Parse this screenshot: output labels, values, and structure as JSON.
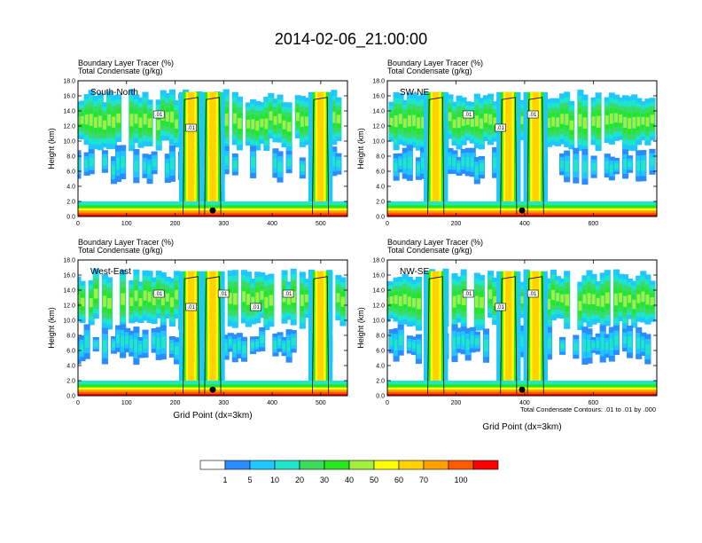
{
  "figure_title": "2014-02-06_21:00:00",
  "panel_line1": "Boundary Layer Tracer   (%)",
  "panel_line2": "Total Condensate   (g/kg)",
  "ylabel": "Height (km)",
  "xlabel": "Grid Point (dx=3km)",
  "contour_info": "Total Condensate Contours: .01 to .01 by .000",
  "colors": {
    "frame": "#000000",
    "contour": "#000000",
    "legend": [
      "#ffffff",
      "#2a8cff",
      "#1ec8ff",
      "#1ee6c8",
      "#3cdc5a",
      "#28e61e",
      "#a0f03c",
      "#ffff00",
      "#ffd200",
      "#ffa000",
      "#ff5a00",
      "#ff0000"
    ]
  },
  "legend": {
    "labels": [
      "1",
      "5",
      "10",
      "20",
      "30",
      "40",
      "50",
      "60",
      "70",
      "100"
    ]
  },
  "chart_data": [
    {
      "type": "heatmap",
      "panel": "South-North",
      "xlabel": "",
      "ylabel": "Height (km)",
      "xlim": [
        0,
        555
      ],
      "ylim": [
        0,
        18
      ],
      "x_ticks": [
        "0",
        "100",
        "200",
        "300",
        "400",
        "500"
      ],
      "y_ticks": [
        "0.0",
        "2.0",
        "4.0",
        "6.0",
        "8.0",
        "10.0",
        "12.0",
        "14.0",
        "16.0",
        "18.0"
      ],
      "contour_labels": [
        ".01",
        ".01"
      ]
    },
    {
      "type": "heatmap",
      "panel": "SW-NE",
      "xlabel": "",
      "ylabel": "Height (km)",
      "xlim": [
        0,
        785
      ],
      "ylim": [
        0,
        18
      ],
      "x_ticks": [
        "0",
        "200",
        "400",
        "600"
      ],
      "y_ticks": [
        "0.0",
        "2.0",
        "4.0",
        "6.0",
        "8.0",
        "10.0",
        "12.0",
        "14.0",
        "16.0",
        "18.0"
      ],
      "contour_labels": [
        ".01",
        ".01",
        ".01"
      ]
    },
    {
      "type": "heatmap",
      "panel": "West-East",
      "xlabel": "Grid Point (dx=3km)",
      "ylabel": "Height (km)",
      "xlim": [
        0,
        555
      ],
      "ylim": [
        0,
        18
      ],
      "x_ticks": [
        "0",
        "100",
        "200",
        "300",
        "400",
        "500"
      ],
      "y_ticks": [
        "0.0",
        "2.0",
        "4.0",
        "6.0",
        "8.0",
        "10.0",
        "12.0",
        "14.0",
        "16.0",
        "18.0"
      ],
      "contour_labels": [
        ".01",
        ".01",
        ".01",
        ".01",
        ".01"
      ]
    },
    {
      "type": "heatmap",
      "panel": "NW-SE",
      "xlabel": "Grid Point (dx=3km)",
      "ylabel": "Height (km)",
      "xlim": [
        0,
        785
      ],
      "ylim": [
        0,
        18
      ],
      "x_ticks": [
        "0",
        "200",
        "400",
        "600"
      ],
      "y_ticks": [
        "0.0",
        "2.0",
        "4.0",
        "6.0",
        "8.0",
        "10.0",
        "12.0",
        "14.0",
        "16.0",
        "18.0"
      ],
      "contour_labels": [
        ".01",
        ".01",
        ".01"
      ]
    }
  ]
}
